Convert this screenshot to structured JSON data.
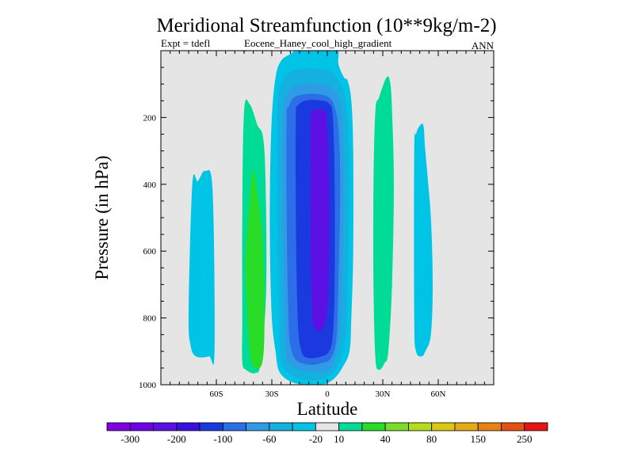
{
  "chart_data": {
    "type": "filled-contour",
    "title": "Meridional Streamfunction (10**9kg/m-2)",
    "subtitle_left_1": "Expt = tdefl",
    "subtitle_left_2": "Eocene_Haney_cool_high_gradient",
    "subtitle_right": "ANN",
    "xlabel": "Latitude",
    "ylabel": "Pressure (in hPa)",
    "xlim": [
      -90,
      90
    ],
    "ylim": [
      1000,
      0
    ],
    "xticks": [
      {
        "value": -60,
        "label": "60S"
      },
      {
        "value": -30,
        "label": "30S"
      },
      {
        "value": 0,
        "label": "0"
      },
      {
        "value": 30,
        "label": "30N"
      },
      {
        "value": 60,
        "label": "60N"
      }
    ],
    "yticks": [
      {
        "value": 200,
        "label": "200"
      },
      {
        "value": 400,
        "label": "400"
      },
      {
        "value": 600,
        "label": "600"
      },
      {
        "value": 800,
        "label": "800"
      },
      {
        "value": 1000,
        "label": "1000"
      }
    ],
    "background_color": "#e5e5e5",
    "colorbar": {
      "colors": [
        "#7f00e0",
        "#6e00e8",
        "#5c10e4",
        "#3a10e0",
        "#1a3ae0",
        "#2b6ee8",
        "#2f9be4",
        "#14b0e0",
        "#00c4e6",
        "#e5e5e5",
        "#00dc96",
        "#28dc28",
        "#78dc28",
        "#b4dc1e",
        "#dcc814",
        "#e6aa14",
        "#e68214",
        "#e65014",
        "#e61414"
      ],
      "labels": [
        {
          "after_box": 1,
          "text": "-300"
        },
        {
          "after_box": 3,
          "text": "-200"
        },
        {
          "after_box": 5,
          "text": "-100"
        },
        {
          "after_box": 7,
          "text": "-60"
        },
        {
          "after_box": 9,
          "text": "-20"
        },
        {
          "after_box": 10,
          "text": "10"
        },
        {
          "after_box": 12,
          "text": "40"
        },
        {
          "after_box": 14,
          "text": "80"
        },
        {
          "after_box": 16,
          "text": "150"
        },
        {
          "after_box": 18,
          "text": "250"
        }
      ]
    },
    "regions": [
      {
        "name": "sh-polar-cell",
        "color": "#00c4e6",
        "value_range": "-20 to -10",
        "poly": [
          [
            -73,
            400
          ],
          [
            -70,
            390
          ],
          [
            -66,
            360
          ],
          [
            -62,
            420
          ],
          [
            -61,
            900
          ],
          [
            -64,
            915
          ],
          [
            -71,
            915
          ],
          [
            -74,
            880
          ],
          [
            -75,
            780
          ]
        ]
      },
      {
        "name": "sh-ferrel-cell-outer",
        "color": "#00dc96",
        "value_range": "10 to 20",
        "poly": [
          [
            -45,
            180
          ],
          [
            -42,
            160
          ],
          [
            -38,
            220
          ],
          [
            -34,
            300
          ],
          [
            -33,
            700
          ],
          [
            -36,
            930
          ],
          [
            -39,
            965
          ],
          [
            -44,
            955
          ],
          [
            -46,
            930
          ],
          [
            -46,
            800
          ],
          [
            -46,
            500
          ]
        ]
      },
      {
        "name": "sh-ferrel-cell-inner",
        "color": "#28dc28",
        "value_range": "20 to 40",
        "poly": [
          [
            -41,
            380
          ],
          [
            -40,
            360
          ],
          [
            -38,
            420
          ],
          [
            -35,
            560
          ],
          [
            -34,
            800
          ],
          [
            -35,
            930
          ],
          [
            -39,
            950
          ],
          [
            -42,
            900
          ],
          [
            -44,
            700
          ],
          [
            -44,
            600
          ]
        ]
      },
      {
        "name": "tropical-outer",
        "color": "#00c4e6",
        "value_range": "-20 to -10",
        "poly": [
          [
            -30,
            200
          ],
          [
            -28,
            80
          ],
          [
            -25,
            30
          ],
          [
            -20,
            10
          ],
          [
            -15,
            -10
          ],
          [
            -12,
            -20
          ],
          [
            -6,
            -20
          ],
          [
            -1,
            -20
          ],
          [
            3,
            -20
          ],
          [
            6,
            0
          ],
          [
            6,
            40
          ],
          [
            9,
            80
          ],
          [
            11,
            90
          ],
          [
            13,
            150
          ],
          [
            14,
            300
          ],
          [
            14,
            600
          ],
          [
            13,
            800
          ],
          [
            12,
            900
          ],
          [
            8,
            950
          ],
          [
            4,
            980
          ],
          [
            0,
            995
          ],
          [
            -4,
            1000
          ],
          [
            -12,
            1000
          ],
          [
            -20,
            990
          ],
          [
            -26,
            960
          ],
          [
            -28,
            900
          ],
          [
            -30,
            800
          ],
          [
            -31,
            600
          ],
          [
            -31,
            400
          ]
        ]
      },
      {
        "name": "tropical-20",
        "color": "#14b0e0",
        "value_range": "-40 to -20",
        "poly": [
          [
            -27,
            200
          ],
          [
            -26,
            120
          ],
          [
            -22,
            70
          ],
          [
            -15,
            55
          ],
          [
            -6,
            55
          ],
          [
            1,
            60
          ],
          [
            5,
            80
          ],
          [
            9,
            130
          ],
          [
            11,
            200
          ],
          [
            12,
            400
          ],
          [
            11,
            700
          ],
          [
            10,
            850
          ],
          [
            5,
            950
          ],
          [
            0,
            975
          ],
          [
            -4,
            985
          ],
          [
            -12,
            985
          ],
          [
            -20,
            970
          ],
          [
            -25,
            930
          ],
          [
            -26,
            800
          ],
          [
            -27,
            500
          ]
        ]
      },
      {
        "name": "tropical-40",
        "color": "#2f9be4",
        "value_range": "-60 to -40",
        "poly": [
          [
            -24,
            200
          ],
          [
            -23,
            150
          ],
          [
            -19,
            110
          ],
          [
            -12,
            100
          ],
          [
            -5,
            100
          ],
          [
            2,
            110
          ],
          [
            6,
            140
          ],
          [
            8,
            200
          ],
          [
            9,
            400
          ],
          [
            8,
            700
          ],
          [
            7,
            850
          ],
          [
            3,
            940
          ],
          [
            -2,
            960
          ],
          [
            -10,
            960
          ],
          [
            -17,
            950
          ],
          [
            -22,
            920
          ],
          [
            -23,
            800
          ],
          [
            -24,
            500
          ]
        ]
      },
      {
        "name": "tropical-60",
        "color": "#2b6ee8",
        "value_range": "-100 to -60",
        "poly": [
          [
            -22,
            200
          ],
          [
            -21,
            170
          ],
          [
            -18,
            140
          ],
          [
            -12,
            130
          ],
          [
            -5,
            130
          ],
          [
            1,
            140
          ],
          [
            4,
            170
          ],
          [
            6,
            230
          ],
          [
            7,
            400
          ],
          [
            6,
            700
          ],
          [
            5,
            860
          ],
          [
            2,
            920
          ],
          [
            -3,
            935
          ],
          [
            -10,
            940
          ],
          [
            -17,
            925
          ],
          [
            -20,
            880
          ],
          [
            -21,
            800
          ],
          [
            -22,
            500
          ]
        ]
      },
      {
        "name": "tropical-100",
        "color": "#1a3ae0",
        "value_range": "-150 to -100",
        "poly": [
          [
            -17,
            200
          ],
          [
            -16,
            165
          ],
          [
            -12,
            150
          ],
          [
            -5,
            148
          ],
          [
            1,
            158
          ],
          [
            3,
            200
          ],
          [
            4,
            400
          ],
          [
            4,
            700
          ],
          [
            3,
            850
          ],
          [
            1,
            900
          ],
          [
            -3,
            915
          ],
          [
            -10,
            920
          ],
          [
            -14,
            900
          ],
          [
            -16,
            800
          ],
          [
            -17,
            500
          ]
        ]
      },
      {
        "name": "tropical-core",
        "color": "#5c10e4",
        "value_range": "-200 to -150",
        "poly": [
          [
            -9,
            200
          ],
          [
            -7,
            180
          ],
          [
            -4,
            175
          ],
          [
            -1,
            185
          ],
          [
            0,
            230
          ],
          [
            1,
            400
          ],
          [
            1,
            600
          ],
          [
            0,
            780
          ],
          [
            -3,
            835
          ],
          [
            -6,
            835
          ],
          [
            -8,
            800
          ],
          [
            -9,
            600
          ],
          [
            -9,
            400
          ]
        ]
      },
      {
        "name": "top-green-speck",
        "color": "#00dc96",
        "value_range": "10 to 20",
        "poly": [
          [
            -46,
            0
          ],
          [
            -44,
            0
          ],
          [
            -45,
            4
          ]
        ]
      },
      {
        "name": "nh-ferrel-cell",
        "color": "#00dc96",
        "value_range": "10 to 20",
        "poly": [
          [
            26,
            180
          ],
          [
            28,
            140
          ],
          [
            32,
            80
          ],
          [
            34,
            95
          ],
          [
            35,
            180
          ],
          [
            36,
            400
          ],
          [
            35,
            700
          ],
          [
            33,
            900
          ],
          [
            31,
            935
          ],
          [
            28,
            955
          ],
          [
            26,
            920
          ],
          [
            25,
            700
          ],
          [
            25,
            400
          ]
        ]
      },
      {
        "name": "nh-polar-cell",
        "color": "#00c4e6",
        "value_range": "-20 to -10",
        "poly": [
          [
            47,
            300
          ],
          [
            48,
            250
          ],
          [
            50,
            225
          ],
          [
            52,
            225
          ],
          [
            53,
            300
          ],
          [
            56,
            500
          ],
          [
            57,
            700
          ],
          [
            56,
            850
          ],
          [
            53,
            900
          ],
          [
            51,
            915
          ],
          [
            48,
            900
          ],
          [
            47,
            800
          ]
        ]
      }
    ]
  }
}
